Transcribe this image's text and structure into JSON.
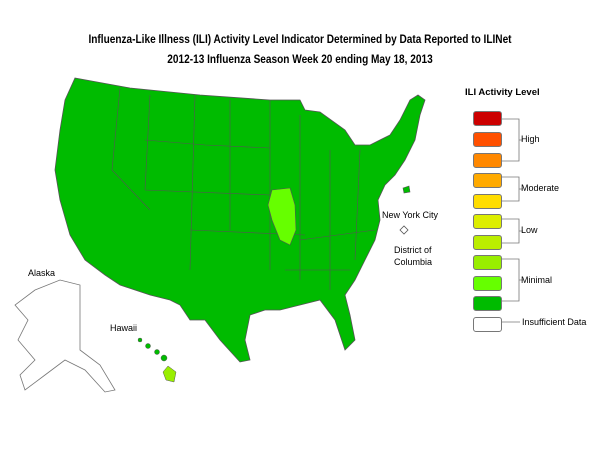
{
  "title_line1": "Influenza-Like Illness (ILI) Activity Level Indicator Determined by Data Reported to ILINet",
  "title_line2": "2012-13  Influenza Season Week  20 ending May 18, 2013",
  "labels": {
    "nyc": "New York City",
    "dc1": "District of",
    "dc2": "Columbia",
    "alaska": "Alaska",
    "hawaii": "Hawaii"
  },
  "legend": {
    "title": "ILI Activity Level",
    "groups": {
      "high": "High",
      "moderate": "Moderate",
      "low": "Low",
      "minimal": "Minimal",
      "insufficient": "Insufficient Data"
    },
    "colors": [
      "#cc0000",
      "#ff5000",
      "#ff8800",
      "#ffaa00",
      "#ffdd00",
      "#ddee00",
      "#bbee00",
      "#99ee00",
      "#66ff00",
      "#00bb00",
      "#ffffff"
    ]
  },
  "map_colors": {
    "default": "#00bb00",
    "illinois": "#66ff00",
    "hawaii_big_island": "#99ee00",
    "alaska": "#ffffff"
  }
}
